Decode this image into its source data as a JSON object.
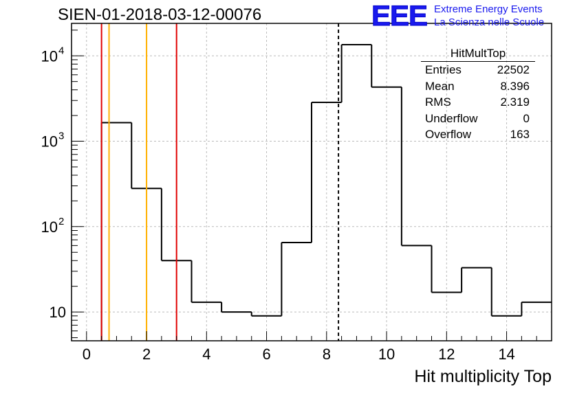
{
  "title": "SIEN-01-2018-03-12-00076",
  "logo": {
    "mark": "EEE",
    "line1": "Extreme Energy Events",
    "line2": "La Scienza nelle Scuole"
  },
  "stats": {
    "name": "HitMultTop",
    "rows": [
      {
        "label": "Entries",
        "value": "22502"
      },
      {
        "label": "Mean",
        "value": "8.396"
      },
      {
        "label": "RMS",
        "value": "2.319"
      },
      {
        "label": "Underflow",
        "value": "0"
      },
      {
        "label": "Overflow",
        "value": "163"
      }
    ]
  },
  "colors": {
    "histogram": "#000000",
    "red_line": "#e00000",
    "orange_line": "#ffb000",
    "grid": "#bbbbbb",
    "logo": "#1a1aee"
  },
  "chart_data": {
    "type": "bar",
    "title": "SIEN-01-2018-03-12-00076",
    "xlabel": "Hit multiplicity Top",
    "ylabel": "",
    "log_y": true,
    "xlim": [
      -0.5,
      15.5
    ],
    "ylim": [
      4.6,
      24000
    ],
    "grid": true,
    "bin_edges": [
      0.5,
      1.5,
      2.5,
      3.5,
      4.5,
      5.5,
      6.5,
      7.5,
      8.5,
      9.5,
      10.5,
      11.5,
      12.5,
      13.5,
      14.5,
      15.5
    ],
    "values": [
      1650,
      280,
      40,
      13,
      10,
      9,
      65,
      2850,
      13500,
      4300,
      60,
      17,
      33,
      9,
      13
    ],
    "x_ticks": [
      0,
      2,
      4,
      6,
      8,
      10,
      12,
      14
    ],
    "y_ticks": [
      {
        "value": 10,
        "base": "10",
        "exp": ""
      },
      {
        "value": 100,
        "base": "10",
        "exp": "2"
      },
      {
        "value": 1000,
        "base": "10",
        "exp": "3"
      },
      {
        "value": 10000,
        "base": "10",
        "exp": "4"
      }
    ],
    "vertical_lines": [
      {
        "x": 0.5,
        "color": "#e00000",
        "style": "solid"
      },
      {
        "x": 0.75,
        "color": "#ffb000",
        "style": "solid"
      },
      {
        "x": 2.0,
        "color": "#ffb000",
        "style": "solid"
      },
      {
        "x": 3.0,
        "color": "#e00000",
        "style": "solid"
      },
      {
        "x": 8.396,
        "color": "#000000",
        "style": "dashed"
      }
    ]
  }
}
